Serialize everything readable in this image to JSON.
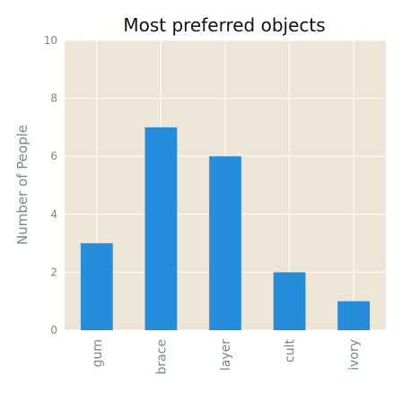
{
  "chart_data": {
    "type": "bar",
    "title": "Most preferred objects",
    "xlabel": "",
    "ylabel": "Number of People",
    "categories": [
      "gum",
      "brace",
      "layer",
      "cult",
      "ivory"
    ],
    "values": [
      3,
      7,
      6,
      2,
      1
    ],
    "ylim": [
      0,
      10
    ],
    "yticks": [
      0,
      2,
      4,
      6,
      8,
      10
    ],
    "grid": true,
    "colors": {
      "bar": "#258ddb",
      "plot_background": "#ede6d6",
      "grid": "#ffffff"
    }
  }
}
